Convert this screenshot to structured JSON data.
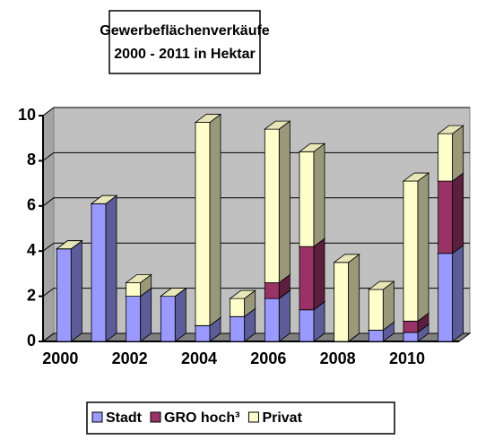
{
  "chart_data": {
    "type": "bar3d_stacked",
    "title": [
      "Gewerbeflächenverkäufe",
      "2000 - 2011 in Hektar"
    ],
    "categories": [
      "2000",
      null,
      "2002",
      null,
      "2004",
      null,
      "2006",
      null,
      "2008",
      null,
      "2010",
      null
    ],
    "series": [
      {
        "name": "Stadt",
        "color": "#9999ff",
        "values": [
          4.1,
          6.1,
          2.0,
          2.0,
          0.7,
          1.1,
          1.9,
          1.4,
          0,
          0.5,
          0.4,
          3.9
        ]
      },
      {
        "name": "GRO hoch³",
        "color": "#993366",
        "values": [
          0,
          0,
          0,
          0,
          0,
          0,
          0.7,
          2.8,
          0,
          0,
          0.5,
          3.2
        ]
      },
      {
        "name": "Privat",
        "color": "#ffffcc",
        "values": [
          0,
          0,
          0.6,
          0,
          9.0,
          0.8,
          6.8,
          4.2,
          3.5,
          1.8,
          6.2,
          2.1
        ]
      }
    ],
    "ylim": [
      0,
      10
    ],
    "yticks": [
      0,
      2,
      4,
      6,
      8,
      10
    ],
    "grid": true,
    "wall_color": "#c0c0c0"
  }
}
